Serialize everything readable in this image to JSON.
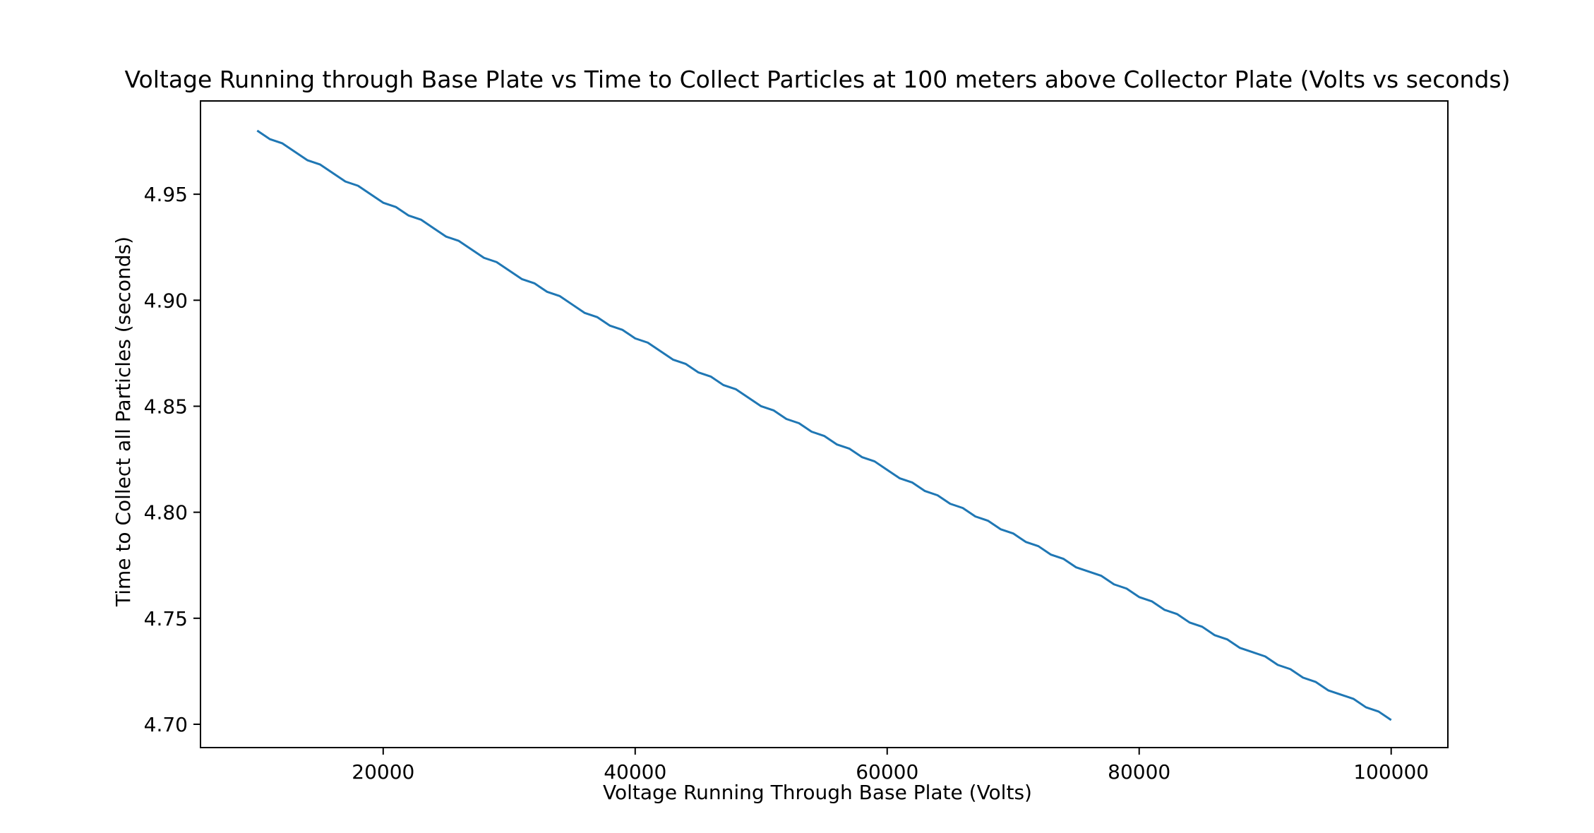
{
  "chart_data": {
    "type": "line",
    "title": "Voltage Running through Base Plate vs Time to Collect Particles at 100 meters above Collector Plate (Volts vs seconds)",
    "xlabel": "Voltage Running Through Base Plate (Volts)",
    "ylabel": "Time to Collect all Particles (seconds)",
    "xlim": [
      5500,
      104500
    ],
    "ylim": [
      4.689,
      4.994
    ],
    "xticks": [
      20000,
      40000,
      60000,
      80000,
      100000
    ],
    "xtick_labels": [
      "20000",
      "40000",
      "60000",
      "80000",
      "100000"
    ],
    "yticks": [
      4.7,
      4.75,
      4.8,
      4.85,
      4.9,
      4.95
    ],
    "ytick_labels": [
      "4.70",
      "4.75",
      "4.80",
      "4.85",
      "4.90",
      "4.95"
    ],
    "grid": false,
    "line_color": "#1f77b4",
    "series": [
      {
        "x": [
          10000,
          11000,
          12000,
          13000,
          14000,
          15000,
          16000,
          17000,
          18000,
          19000,
          20000,
          21000,
          22000,
          23000,
          24000,
          25000,
          26000,
          27000,
          28000,
          29000,
          30000,
          31000,
          32000,
          33000,
          34000,
          35000,
          36000,
          37000,
          38000,
          39000,
          40000,
          41000,
          42000,
          43000,
          44000,
          45000,
          46000,
          47000,
          48000,
          49000,
          50000,
          51000,
          52000,
          53000,
          54000,
          55000,
          56000,
          57000,
          58000,
          59000,
          60000,
          61000,
          62000,
          63000,
          64000,
          65000,
          66000,
          67000,
          68000,
          69000,
          70000,
          71000,
          72000,
          73000,
          74000,
          75000,
          76000,
          77000,
          78000,
          79000,
          80000,
          81000,
          82000,
          83000,
          84000,
          85000,
          86000,
          87000,
          88000,
          89000,
          90000,
          91000,
          92000,
          93000,
          94000,
          95000,
          96000,
          97000,
          98000,
          99000,
          100000
        ],
        "y": [
          4.98,
          4.976,
          4.974,
          4.97,
          4.966,
          4.964,
          4.96,
          4.956,
          4.954,
          4.95,
          4.946,
          4.944,
          4.94,
          4.938,
          4.934,
          4.93,
          4.928,
          4.924,
          4.92,
          4.918,
          4.914,
          4.91,
          4.908,
          4.904,
          4.902,
          4.898,
          4.894,
          4.892,
          4.888,
          4.886,
          4.882,
          4.88,
          4.876,
          4.872,
          4.87,
          4.866,
          4.864,
          4.86,
          4.858,
          4.854,
          4.85,
          4.848,
          4.844,
          4.842,
          4.838,
          4.836,
          4.832,
          4.83,
          4.826,
          4.824,
          4.82,
          4.816,
          4.814,
          4.81,
          4.808,
          4.804,
          4.802,
          4.798,
          4.796,
          4.792,
          4.79,
          4.786,
          4.784,
          4.78,
          4.778,
          4.774,
          4.772,
          4.77,
          4.766,
          4.764,
          4.76,
          4.758,
          4.754,
          4.752,
          4.748,
          4.746,
          4.742,
          4.74,
          4.736,
          4.734,
          4.732,
          4.728,
          4.726,
          4.722,
          4.72,
          4.716,
          4.714,
          4.712,
          4.708,
          4.706,
          4.702
        ]
      }
    ]
  }
}
